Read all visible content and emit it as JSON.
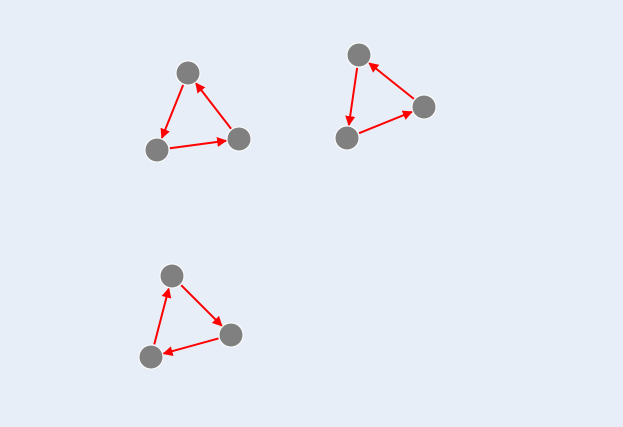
{
  "diagram": {
    "type": "directed-graph",
    "background_color": "#e8eef7",
    "node_color": "#808080",
    "edge_color": "#ff0000",
    "nodes": [
      {
        "id": "a1"
      },
      {
        "id": "a2"
      },
      {
        "id": "a3"
      },
      {
        "id": "b1"
      },
      {
        "id": "b2"
      },
      {
        "id": "b3"
      },
      {
        "id": "c1"
      },
      {
        "id": "c2"
      },
      {
        "id": "c3"
      }
    ],
    "edges": [
      {
        "from": "a1",
        "to": "a2"
      },
      {
        "from": "a2",
        "to": "a3"
      },
      {
        "from": "a3",
        "to": "a1"
      },
      {
        "from": "b1",
        "to": "b2"
      },
      {
        "from": "b2",
        "to": "b3"
      },
      {
        "from": "b3",
        "to": "b1"
      },
      {
        "from": "c1",
        "to": "c2"
      },
      {
        "from": "c2",
        "to": "c3"
      },
      {
        "from": "c3",
        "to": "c1"
      }
    ]
  }
}
